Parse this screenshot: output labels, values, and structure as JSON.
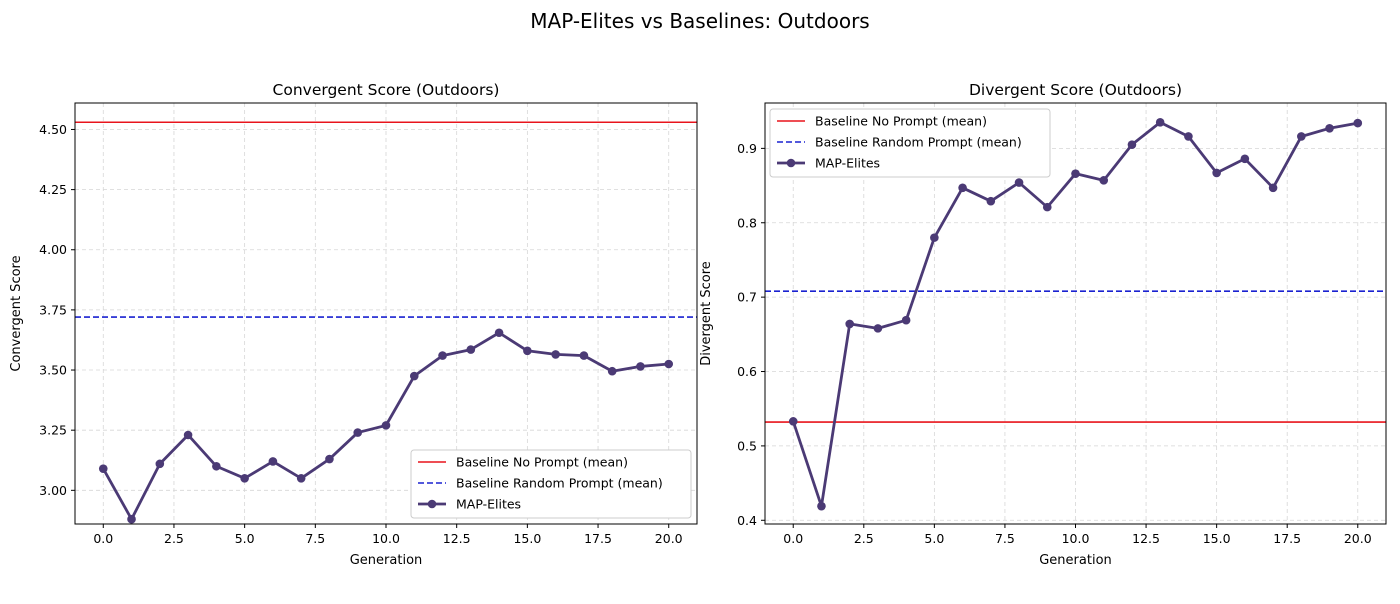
{
  "figure": {
    "suptitle": "MAP-Elites vs Baselines: Outdoors"
  },
  "colors": {
    "baseline_no_prompt": "#e8141c",
    "baseline_random_prompt": "#1a22d0",
    "map_elites": "#4b3a75"
  },
  "chart_data": [
    {
      "type": "line",
      "title": "Convergent Score (Outdoors)",
      "xlabel": "Generation",
      "ylabel": "Convergent Score",
      "xlim": [
        -1,
        21
      ],
      "ylim": [
        2.86,
        4.61
      ],
      "xticks": [
        0,
        2.5,
        5,
        7.5,
        10,
        12.5,
        15,
        17.5,
        20
      ],
      "xtick_labels": [
        "0.0",
        "2.5",
        "5.0",
        "7.5",
        "10.0",
        "12.5",
        "15.0",
        "17.5",
        "20.0"
      ],
      "yticks": [
        3.0,
        3.25,
        3.5,
        3.75,
        4.0,
        4.25,
        4.5
      ],
      "ytick_labels": [
        "3.00",
        "3.25",
        "3.50",
        "3.75",
        "4.00",
        "4.25",
        "4.50"
      ],
      "grid": true,
      "legend_position": "lower-right",
      "series": [
        {
          "name": "Baseline No Prompt (mean)",
          "kind": "hline",
          "y": 4.53,
          "style": "solid",
          "color": "#e8141c"
        },
        {
          "name": "Baseline Random Prompt (mean)",
          "kind": "hline",
          "y": 3.72,
          "style": "dashed",
          "color": "#1a22d0"
        },
        {
          "name": "MAP-Elites",
          "kind": "line-markers",
          "color": "#4b3a75",
          "x": [
            0,
            1,
            2,
            3,
            4,
            5,
            6,
            7,
            8,
            9,
            10,
            11,
            12,
            13,
            14,
            15,
            16,
            17,
            18,
            19,
            20
          ],
          "values": [
            3.09,
            2.88,
            3.11,
            3.23,
            3.1,
            3.05,
            3.12,
            3.05,
            3.13,
            3.24,
            3.27,
            3.475,
            3.56,
            3.585,
            3.655,
            3.58,
            3.565,
            3.56,
            3.495,
            3.515,
            3.525
          ]
        }
      ]
    },
    {
      "type": "line",
      "title": "Divergent Score (Outdoors)",
      "xlabel": "Generation",
      "ylabel": "Divergent Score",
      "xlim": [
        -1,
        21
      ],
      "ylim": [
        0.395,
        0.961
      ],
      "xticks": [
        0,
        2.5,
        5,
        7.5,
        10,
        12.5,
        15,
        17.5,
        20
      ],
      "xtick_labels": [
        "0.0",
        "2.5",
        "5.0",
        "7.5",
        "10.0",
        "12.5",
        "15.0",
        "17.5",
        "20.0"
      ],
      "yticks": [
        0.4,
        0.5,
        0.6,
        0.7,
        0.8,
        0.9
      ],
      "ytick_labels": [
        "0.4",
        "0.5",
        "0.6",
        "0.7",
        "0.8",
        "0.9"
      ],
      "grid": true,
      "legend_position": "upper-left",
      "series": [
        {
          "name": "Baseline No Prompt (mean)",
          "kind": "hline",
          "y": 0.532,
          "style": "solid",
          "color": "#e8141c"
        },
        {
          "name": "Baseline Random Prompt (mean)",
          "kind": "hline",
          "y": 0.708,
          "style": "dashed",
          "color": "#1a22d0"
        },
        {
          "name": "MAP-Elites",
          "kind": "line-markers",
          "color": "#4b3a75",
          "x": [
            0,
            1,
            2,
            3,
            4,
            5,
            6,
            7,
            8,
            9,
            10,
            11,
            12,
            13,
            14,
            15,
            16,
            17,
            18,
            19,
            20
          ],
          "values": [
            0.533,
            0.419,
            0.664,
            0.658,
            0.669,
            0.78,
            0.847,
            0.829,
            0.854,
            0.821,
            0.866,
            0.857,
            0.905,
            0.935,
            0.916,
            0.867,
            0.886,
            0.847,
            0.916,
            0.927,
            0.934
          ]
        }
      ]
    }
  ]
}
